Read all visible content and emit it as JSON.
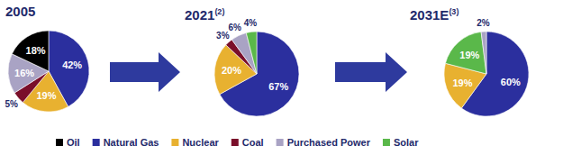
{
  "chart_data": [
    {
      "type": "pie",
      "title": "2005",
      "categories": [
        "Natural Gas",
        "Nuclear",
        "Coal",
        "Purchased Power",
        "Oil"
      ],
      "values": [
        42,
        19,
        5,
        16,
        18
      ],
      "value_labels": [
        "42%",
        "19%",
        "5%",
        "16%",
        "18%"
      ],
      "colors": [
        "#2b2f9e",
        "#e8b130",
        "#7a0f2a",
        "#a9a3c4",
        "#000000"
      ],
      "data_labels": true
    },
    {
      "type": "pie",
      "title": "2021(2)",
      "categories": [
        "Natural Gas",
        "Nuclear",
        "Coal",
        "Purchased Power",
        "Solar"
      ],
      "values": [
        67,
        20,
        3,
        6,
        4
      ],
      "value_labels": [
        "67%",
        "20%",
        "3%",
        "6%",
        "4%"
      ],
      "colors": [
        "#2b2f9e",
        "#e8b130",
        "#7a0f2a",
        "#a9a3c4",
        "#5ab84a"
      ],
      "data_labels": true
    },
    {
      "type": "pie",
      "title": "2031E(3)",
      "categories": [
        "Natural Gas",
        "Nuclear",
        "Solar",
        "Purchased Power"
      ],
      "values": [
        60,
        19,
        19,
        2
      ],
      "value_labels": [
        "60%",
        "19%",
        "19%",
        "2%"
      ],
      "colors": [
        "#2b2f9e",
        "#e8b130",
        "#5ab84a",
        "#a9a3c4"
      ],
      "data_labels": true
    }
  ],
  "legend_items": [
    {
      "name": "Oil",
      "color": "#000000"
    },
    {
      "name": "Natural Gas",
      "color": "#2b2f9e"
    },
    {
      "name": "Nuclear",
      "color": "#e8b130"
    },
    {
      "name": "Coal",
      "color": "#7a0f2a"
    },
    {
      "name": "Purchased Power",
      "color": "#a9a3c4"
    },
    {
      "name": "Solar",
      "color": "#5ab84a"
    }
  ]
}
